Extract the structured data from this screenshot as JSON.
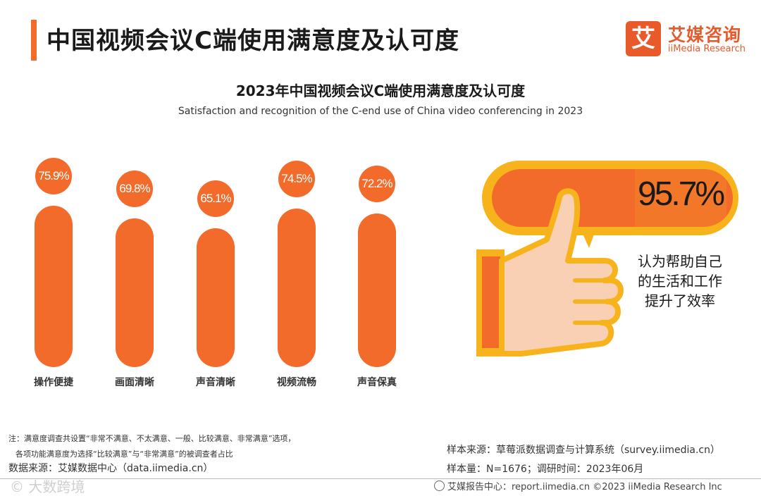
{
  "header": {
    "title": "中国视频会议C端使用满意度及认可度",
    "logo_mark": "艾",
    "logo_cn": "艾媒咨询",
    "logo_en": "iiMedia Research"
  },
  "chart_data": {
    "type": "bar",
    "title": "2023年中国视频会议C端使用满意度及认可度",
    "subtitle": "Satisfaction and recognition of the C-end use of China video conferencing in 2023",
    "categories": [
      "操作便捷",
      "画面清晰",
      "声音清晰",
      "视频流畅",
      "声音保真"
    ],
    "values": [
      75.9,
      69.8,
      65.1,
      74.5,
      72.2
    ],
    "value_labels": [
      "75.9%",
      "69.8%",
      "65.1%",
      "74.5%",
      "72.2%"
    ],
    "ylim": [
      0,
      100
    ],
    "grid": false,
    "bar_color": "#f26b2b"
  },
  "highlight": {
    "value": 95.7,
    "value_label": "95.7%",
    "text": "认为帮助自己的生活和工作提升了效率"
  },
  "notes": {
    "line1": "注：满意度调查共设置“非常不满意、不太满意、一般、比较满意、非常满意”选项，",
    "line2": "各项功能满意度为选择“比较满意”与“非常满意”的被调查者占比",
    "data_source": "数据来源：艾媒数据中心（data.iimedia.cn）",
    "sample_source": "样本来源：草莓派数据调查与计算系统（survey.iimedia.cn）",
    "sample_size": "样本量：N=1676；调研时间：2023年06月"
  },
  "footer": {
    "text": "艾媒报告中心：report.iimedia.cn ©2023 iiMedia Research Inc",
    "watermark": "© 大数跨境"
  },
  "colors": {
    "accent": "#f26b2b",
    "yellow": "#f7b31b",
    "skin": "#f9d0b4"
  }
}
